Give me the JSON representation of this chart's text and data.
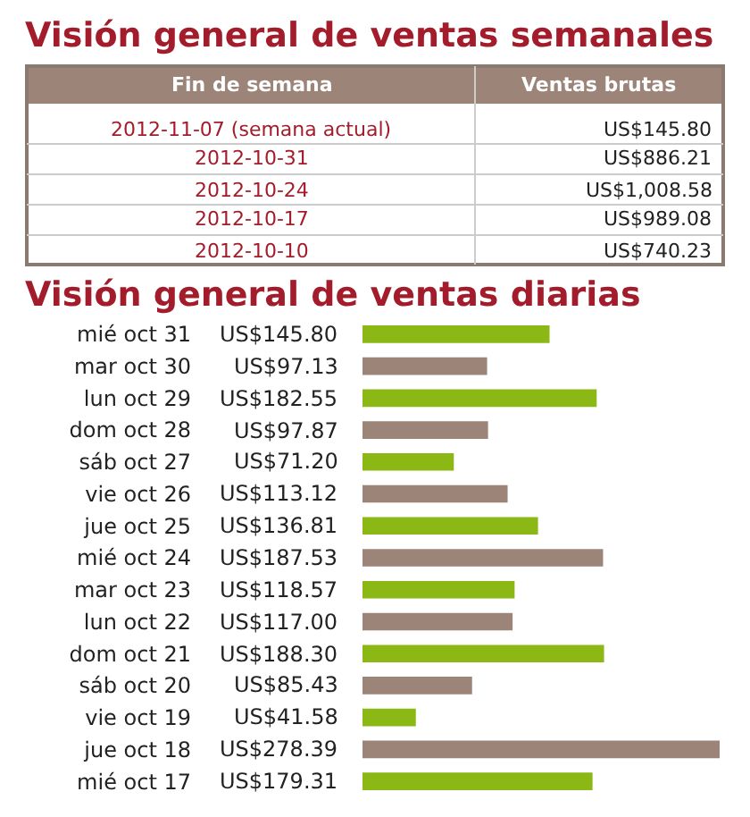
{
  "chart_data": [
    {
      "type": "other",
      "title": "Visión general de ventas semanales",
      "annotations": [
        "Fin de semana",
        "Ventas brutas",
        "2012-11-07 (semana actual)",
        "US$145.80",
        "2012-10-31",
        "US$886.21",
        "2012-10-24",
        "US$1,008.58",
        "2012-10-17",
        "US$989.08",
        "2012-10-10",
        "US$740.23"
      ]
    },
    {
      "type": "bar",
      "orientation": "horizontal",
      "title": "Visión general de ventas diarias",
      "categories": [
        "mié oct 31",
        "mar oct 30",
        "lun oct 29",
        "dom oct 28",
        "sáb oct 27",
        "vie oct 26",
        "jue oct 25",
        "mié oct 24",
        "mar oct 23",
        "lun oct 22",
        "dom oct 21",
        "sáb oct 20",
        "vie oct 19",
        "jue oct 18",
        "mié oct 17"
      ],
      "values": [
        145.8,
        97.13,
        182.55,
        97.87,
        71.2,
        113.12,
        136.81,
        187.53,
        118.57,
        117.0,
        188.3,
        85.43,
        41.58,
        278.39,
        179.31
      ],
      "value_labels": [
        "US$145.80",
        "US$97.13",
        "US$182.55",
        "US$97.87",
        "US$71.20",
        "US$113.12",
        "US$136.81",
        "US$187.53",
        "US$118.57",
        "US$117.00",
        "US$188.30",
        "US$85.43",
        "US$41.58",
        "US$278.39",
        "US$179.31"
      ],
      "colors": [
        "#8cb815",
        "#9c8478",
        "#8cb815",
        "#9c8478",
        "#8cb815",
        "#9c8478",
        "#8cb815",
        "#9c8478",
        "#8cb815",
        "#9c8478",
        "#8cb815",
        "#9c8478",
        "#8cb815",
        "#9c8478",
        "#8cb815"
      ],
      "tick_labels": "y"
    }
  ]
}
